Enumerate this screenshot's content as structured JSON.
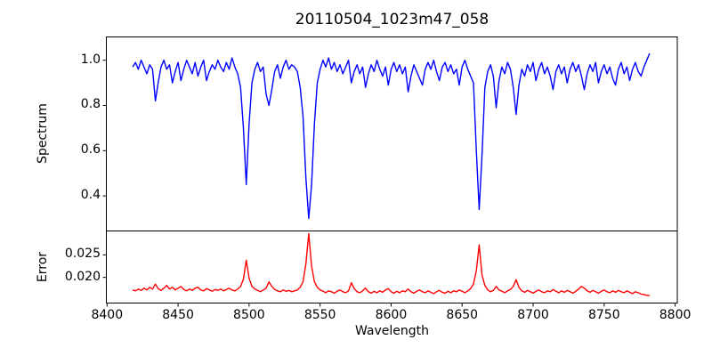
{
  "title": "20110504_1023m47_058",
  "chart_data": {
    "type": "line",
    "title": "20110504_1023m47_058",
    "xlabel": "Wavelength",
    "grid": false,
    "legend": false,
    "x_axis": {
      "lim": [
        8399.5,
        8801.5
      ],
      "ticks": [
        8400,
        8450,
        8500,
        8550,
        8600,
        8650,
        8700,
        8750,
        8800
      ],
      "tick_labels": [
        "8400",
        "8450",
        "8500",
        "8550",
        "8600",
        "8650",
        "8700",
        "8750",
        "8800"
      ]
    },
    "panels": [
      {
        "name": "spectrum",
        "ylabel": "Spectrum",
        "color": "#0000ff",
        "ylim": [
          0.245,
          1.103
        ],
        "yticks": [
          0.4,
          0.6,
          0.8,
          1.0
        ],
        "ytick_labels": [
          "0.4",
          "0.6",
          "0.8",
          "1.0"
        ],
        "x_start": 8418,
        "x_step": 2,
        "values": [
          0.97,
          0.99,
          0.96,
          1.0,
          0.97,
          0.94,
          0.98,
          0.96,
          0.82,
          0.9,
          0.97,
          1.0,
          0.96,
          0.98,
          0.9,
          0.95,
          0.99,
          0.91,
          0.96,
          1.0,
          0.97,
          0.94,
          0.99,
          0.93,
          0.97,
          1.0,
          0.91,
          0.95,
          0.98,
          0.96,
          1.0,
          0.97,
          0.95,
          0.99,
          0.96,
          1.01,
          0.97,
          0.94,
          0.88,
          0.7,
          0.45,
          0.72,
          0.9,
          0.96,
          0.99,
          0.95,
          0.97,
          0.85,
          0.8,
          0.87,
          0.95,
          0.98,
          0.92,
          0.97,
          1.0,
          0.96,
          0.98,
          0.97,
          0.95,
          0.88,
          0.75,
          0.48,
          0.3,
          0.45,
          0.72,
          0.9,
          0.96,
          1.0,
          0.97,
          1.01,
          0.96,
          0.99,
          0.95,
          0.98,
          0.94,
          0.97,
          1.0,
          0.9,
          0.95,
          0.98,
          0.94,
          0.97,
          0.88,
          0.94,
          0.98,
          0.95,
          1.0,
          0.96,
          0.93,
          0.97,
          0.89,
          0.96,
          0.99,
          0.95,
          0.98,
          0.94,
          0.97,
          0.86,
          0.93,
          0.98,
          0.95,
          0.92,
          0.89,
          0.96,
          0.99,
          0.96,
          1.0,
          0.95,
          0.91,
          0.97,
          0.99,
          0.95,
          0.98,
          0.94,
          0.96,
          0.89,
          0.97,
          1.0,
          0.96,
          0.93,
          0.9,
          0.6,
          0.34,
          0.58,
          0.88,
          0.95,
          0.98,
          0.93,
          0.79,
          0.91,
          0.97,
          0.94,
          0.99,
          0.96,
          0.88,
          0.76,
          0.89,
          0.96,
          0.93,
          0.98,
          0.95,
          0.99,
          0.91,
          0.96,
          0.99,
          0.94,
          0.97,
          0.93,
          0.87,
          0.95,
          0.98,
          0.94,
          0.97,
          0.9,
          0.96,
          0.99,
          0.95,
          0.98,
          0.93,
          0.87,
          0.94,
          0.98,
          0.95,
          0.99,
          0.9,
          0.95,
          0.98,
          0.94,
          0.97,
          0.92,
          0.89,
          0.96,
          0.99,
          0.94,
          0.97,
          0.91,
          0.96,
          0.99,
          0.95,
          0.93,
          0.97,
          1.0,
          1.03
        ]
      },
      {
        "name": "error",
        "ylabel": "Error",
        "color": "#ff0000",
        "ylim": [
          0.0143,
          0.0303
        ],
        "yticks": [
          0.02,
          0.025
        ],
        "ytick_labels": [
          "0.020",
          "0.025"
        ],
        "x_start": 8418,
        "x_step": 2,
        "values": [
          0.0172,
          0.017,
          0.0174,
          0.0171,
          0.0176,
          0.0172,
          0.0178,
          0.0174,
          0.0185,
          0.0175,
          0.0171,
          0.0176,
          0.0182,
          0.0174,
          0.0178,
          0.0172,
          0.0176,
          0.018,
          0.0173,
          0.017,
          0.0174,
          0.0171,
          0.0176,
          0.0178,
          0.0172,
          0.017,
          0.0175,
          0.0172,
          0.0169,
          0.0173,
          0.0171,
          0.0174,
          0.017,
          0.0173,
          0.0176,
          0.0172,
          0.017,
          0.0174,
          0.018,
          0.0196,
          0.0238,
          0.0198,
          0.018,
          0.0174,
          0.0171,
          0.0168,
          0.0172,
          0.0176,
          0.019,
          0.018,
          0.0173,
          0.017,
          0.0168,
          0.0172,
          0.0169,
          0.0171,
          0.0168,
          0.017,
          0.0172,
          0.0178,
          0.019,
          0.023,
          0.0297,
          0.0225,
          0.019,
          0.0178,
          0.0172,
          0.0169,
          0.0166,
          0.017,
          0.0168,
          0.0165,
          0.0169,
          0.0172,
          0.0168,
          0.0166,
          0.017,
          0.0188,
          0.0175,
          0.0168,
          0.0166,
          0.017,
          0.0176,
          0.0168,
          0.0165,
          0.0169,
          0.0166,
          0.017,
          0.0167,
          0.0172,
          0.0175,
          0.0168,
          0.0165,
          0.0169,
          0.0166,
          0.017,
          0.0168,
          0.0174,
          0.0168,
          0.0165,
          0.0169,
          0.0172,
          0.0168,
          0.0166,
          0.017,
          0.0167,
          0.0164,
          0.0168,
          0.0171,
          0.0167,
          0.0165,
          0.0169,
          0.0166,
          0.017,
          0.0168,
          0.0172,
          0.0169,
          0.0166,
          0.017,
          0.0175,
          0.0185,
          0.0215,
          0.0272,
          0.0205,
          0.0182,
          0.0172,
          0.0168,
          0.0171,
          0.018,
          0.0172,
          0.0169,
          0.0166,
          0.017,
          0.0173,
          0.018,
          0.0195,
          0.0178,
          0.017,
          0.0167,
          0.0171,
          0.0168,
          0.0165,
          0.0169,
          0.0172,
          0.0168,
          0.0166,
          0.017,
          0.0168,
          0.0173,
          0.0169,
          0.0166,
          0.017,
          0.0167,
          0.0171,
          0.0168,
          0.0165,
          0.0169,
          0.0174,
          0.018,
          0.0176,
          0.017,
          0.0167,
          0.0171,
          0.0168,
          0.0165,
          0.0169,
          0.0172,
          0.0168,
          0.0166,
          0.017,
          0.0167,
          0.0171,
          0.0168,
          0.0166,
          0.017,
          0.0167,
          0.0164,
          0.0168,
          0.0166,
          0.0163,
          0.0162,
          0.016,
          0.016
        ]
      }
    ],
    "colors": {
      "spectrum_line": "#0000ff",
      "error_line": "#ff0000",
      "frame": "#000000",
      "background": "#ffffff"
    }
  }
}
